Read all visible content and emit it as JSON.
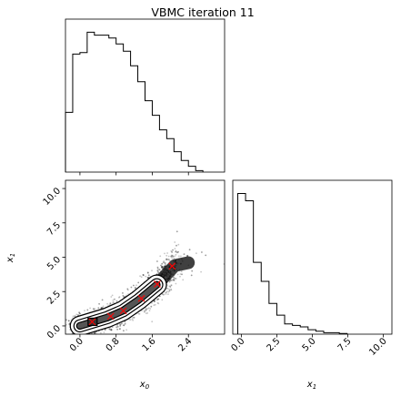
{
  "chart_data": {
    "type": "corner",
    "title": "VBMC iteration 11",
    "variables": [
      {
        "name": "x0",
        "label": "x_0",
        "label_base": "x",
        "label_sub": "0",
        "range": [
          -0.32,
          3.2
        ],
        "ticks": [
          0.0,
          0.8,
          1.6,
          2.4
        ],
        "tick_labels": [
          "0.0",
          "0.8",
          "1.6",
          "2.4"
        ]
      },
      {
        "name": "x1",
        "label": "x_1",
        "label_base": "x",
        "label_sub": "1",
        "range": [
          -0.6,
          10.6
        ],
        "ticks": [
          0.0,
          2.5,
          5.0,
          7.5,
          10.0
        ],
        "tick_labels": [
          "0.0",
          "2.5",
          "5.0",
          "7.5",
          "10.0"
        ]
      }
    ],
    "hist_x0": {
      "type": "step",
      "edges": [
        -0.32,
        -0.16,
        0.0,
        0.16,
        0.32,
        0.48,
        0.64,
        0.8,
        0.96,
        1.12,
        1.28,
        1.44,
        1.6,
        1.76,
        1.92,
        2.08,
        2.24,
        2.4,
        2.56,
        2.72
      ],
      "counts": [
        0.41,
        0.81,
        0.82,
        0.96,
        0.94,
        0.94,
        0.92,
        0.88,
        0.83,
        0.73,
        0.62,
        0.49,
        0.39,
        0.29,
        0.23,
        0.14,
        0.08,
        0.04,
        0.01
      ]
    },
    "hist_x1": {
      "type": "step",
      "edges": [
        -0.25,
        0.3,
        0.85,
        1.4,
        1.95,
        2.5,
        3.05,
        3.6,
        4.15,
        4.7,
        5.25,
        5.8,
        6.35,
        6.9,
        7.45
      ],
      "counts": [
        0.96,
        0.91,
        0.49,
        0.36,
        0.21,
        0.13,
        0.07,
        0.06,
        0.05,
        0.03,
        0.02,
        0.01,
        0.01,
        0.005
      ]
    },
    "scatter_ridge": [
      {
        "x": 0.0,
        "y": 0.0
      },
      {
        "x": 0.3,
        "y": 0.3
      },
      {
        "x": 0.6,
        "y": 0.6
      },
      {
        "x": 0.95,
        "y": 1.1
      },
      {
        "x": 1.3,
        "y": 1.9
      },
      {
        "x": 1.7,
        "y": 3.0
      },
      {
        "x": 2.1,
        "y": 4.4
      },
      {
        "x": 2.4,
        "y": 4.6
      }
    ],
    "markers": {
      "color": "#ff0000",
      "symbol": "x",
      "points": [
        {
          "x": 0.27,
          "y": 0.3
        },
        {
          "x": 0.68,
          "y": 0.7
        },
        {
          "x": 0.96,
          "y": 1.1
        },
        {
          "x": 1.36,
          "y": 2.0
        },
        {
          "x": 1.71,
          "y": 3.05
        },
        {
          "x": 2.04,
          "y": 4.35
        }
      ]
    },
    "contour_levels": 3,
    "grid": false
  }
}
